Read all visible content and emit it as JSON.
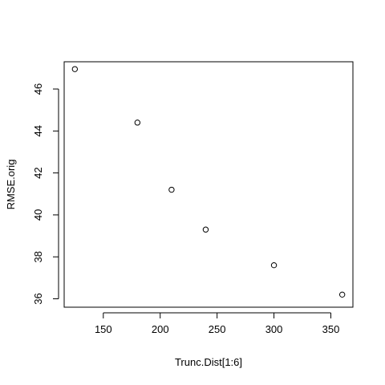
{
  "chart_data": {
    "type": "scatter",
    "title": "",
    "xlabel": "Trunc.Dist[1:6]",
    "ylabel": "RMSE.orig",
    "x": [
      125,
      180,
      210,
      240,
      300,
      360
    ],
    "y": [
      46.95,
      44.4,
      41.2,
      39.3,
      37.6,
      36.2
    ],
    "xlim": [
      115.6,
      369.4
    ],
    "ylim": [
      35.6,
      47.3
    ],
    "xticks": [
      150,
      200,
      250,
      300,
      350
    ],
    "yticks": [
      36,
      38,
      40,
      42,
      44,
      46
    ],
    "xtick_labels": [
      "150",
      "200",
      "250",
      "300",
      "350"
    ],
    "ytick_labels": [
      "36",
      "38",
      "40",
      "42",
      "44",
      "46"
    ],
    "grid": false,
    "legend": "none",
    "point_style": "open-circle",
    "color": "#000000"
  }
}
